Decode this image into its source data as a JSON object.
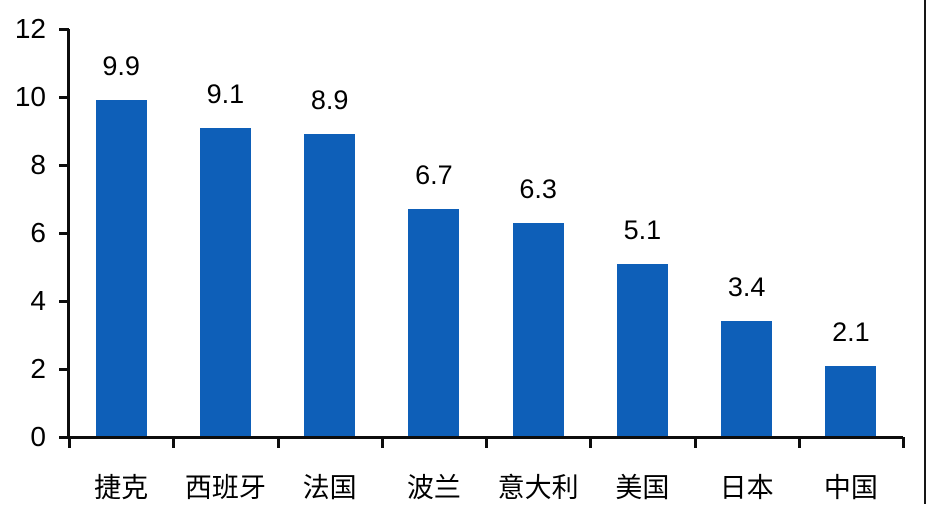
{
  "chart_data": {
    "type": "bar",
    "categories": [
      "捷克",
      "西班牙",
      "法国",
      "波兰",
      "意大利",
      "美国",
      "日本",
      "中国"
    ],
    "values": [
      9.9,
      9.1,
      8.9,
      6.7,
      6.3,
      5.1,
      3.4,
      2.1
    ],
    "title": "",
    "xlabel": "",
    "ylabel": "",
    "ylim": [
      0,
      12
    ],
    "yticks": [
      0,
      2,
      4,
      6,
      8,
      10,
      12
    ],
    "grid": false,
    "legend": false,
    "bar_color": "#0e5fb8",
    "axis_color": "#0d0d0d",
    "background_color": "#ffffff"
  }
}
